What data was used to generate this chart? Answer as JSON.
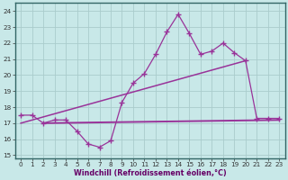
{
  "title": "",
  "xlabel": "Windchill (Refroidissement éolien,°C)",
  "bg_color": "#c8e8e8",
  "plot_bg_color": "#c8e8e8",
  "grid_color": "#aacccc",
  "line_color": "#993399",
  "border_color": "#336666",
  "x_ticks": [
    0,
    1,
    2,
    3,
    4,
    5,
    6,
    7,
    8,
    9,
    10,
    11,
    12,
    13,
    14,
    15,
    16,
    17,
    18,
    19,
    20,
    21,
    22,
    23
  ],
  "y_ticks": [
    15,
    16,
    17,
    18,
    19,
    20,
    21,
    22,
    23,
    24
  ],
  "ylim": [
    14.8,
    24.5
  ],
  "xlim": [
    -0.5,
    23.5
  ],
  "line1_x": [
    0,
    1,
    2,
    3,
    4,
    5,
    6,
    7,
    8,
    9,
    10,
    11,
    12,
    13,
    14,
    15,
    16,
    17,
    18,
    19,
    20,
    21,
    22,
    23
  ],
  "line1_y": [
    17.5,
    17.5,
    17.0,
    17.2,
    17.2,
    16.5,
    15.7,
    15.5,
    15.9,
    18.3,
    19.5,
    20.1,
    21.3,
    22.7,
    23.8,
    22.6,
    21.3,
    21.5,
    22.0,
    21.4,
    20.9,
    17.3,
    17.3,
    17.3
  ],
  "line2_x": [
    0,
    20
  ],
  "line2_y": [
    17.0,
    20.9
  ],
  "line3_x": [
    2,
    23
  ],
  "line3_y": [
    17.0,
    17.2
  ],
  "xlabel_color": "#660066",
  "xlabel_fontsize": 5.8,
  "tick_fontsize": 5.2,
  "tick_color": "#333333"
}
